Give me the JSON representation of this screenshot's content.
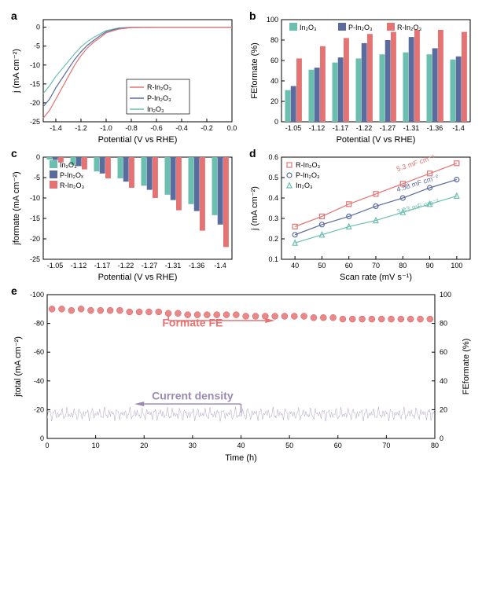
{
  "colors": {
    "in2o3": "#6bbfae",
    "p_in2o3": "#5a6b9e",
    "r_in2o3": "#e57373",
    "formate_marker": "#e57373",
    "current_line": "#9b8bb4",
    "text": "#000000",
    "axis": "#000000",
    "bg": "#ffffff"
  },
  "panel_a": {
    "label": "a",
    "type": "line",
    "xlabel": "Potential (V vs RHE)",
    "ylabel": "j (mA cm⁻²)",
    "xlim": [
      -1.5,
      0.0
    ],
    "ylim": [
      -25,
      2
    ],
    "xticks": [
      -1.4,
      -1.2,
      -1.0,
      -0.8,
      -0.6,
      -0.4,
      -0.2,
      0.0
    ],
    "yticks": [
      -25,
      -20,
      -15,
      -10,
      -5,
      0
    ],
    "legend_items": [
      "R-In₂O₃",
      "P-In₂O₃",
      "In₂O₃"
    ],
    "legend_colors": [
      "#e57373",
      "#5a6b9e",
      "#6bbfae"
    ],
    "series": {
      "r": [
        [
          -1.5,
          -24
        ],
        [
          -1.45,
          -22
        ],
        [
          -1.4,
          -19
        ],
        [
          -1.35,
          -16
        ],
        [
          -1.3,
          -13
        ],
        [
          -1.25,
          -10
        ],
        [
          -1.2,
          -7.5
        ],
        [
          -1.15,
          -5.5
        ],
        [
          -1.1,
          -4
        ],
        [
          -1.05,
          -2.8
        ],
        [
          -1.0,
          -1.5
        ],
        [
          -0.9,
          -0.5
        ],
        [
          -0.8,
          -0.1
        ],
        [
          -0.6,
          0
        ],
        [
          -0.4,
          0
        ],
        [
          -0.2,
          0
        ],
        [
          0,
          0
        ]
      ],
      "p": [
        [
          -1.5,
          -21
        ],
        [
          -1.45,
          -19
        ],
        [
          -1.4,
          -16
        ],
        [
          -1.35,
          -13.5
        ],
        [
          -1.3,
          -11
        ],
        [
          -1.25,
          -8.5
        ],
        [
          -1.2,
          -6.5
        ],
        [
          -1.15,
          -4.8
        ],
        [
          -1.1,
          -3.5
        ],
        [
          -1.05,
          -2.3
        ],
        [
          -1.0,
          -1.2
        ],
        [
          -0.9,
          -0.3
        ],
        [
          -0.8,
          -0.05
        ],
        [
          -0.6,
          0
        ],
        [
          -0.4,
          0
        ],
        [
          -0.2,
          0
        ],
        [
          0,
          0
        ]
      ],
      "i": [
        [
          -1.5,
          -17.5
        ],
        [
          -1.45,
          -15.5
        ],
        [
          -1.4,
          -13
        ],
        [
          -1.35,
          -11
        ],
        [
          -1.3,
          -9
        ],
        [
          -1.25,
          -7
        ],
        [
          -1.2,
          -5.2
        ],
        [
          -1.15,
          -3.8
        ],
        [
          -1.1,
          -2.7
        ],
        [
          -1.05,
          -1.8
        ],
        [
          -1.0,
          -0.9
        ],
        [
          -0.9,
          -0.2
        ],
        [
          -0.8,
          -0.03
        ],
        [
          -0.6,
          0
        ],
        [
          -0.4,
          0
        ],
        [
          -0.2,
          0
        ],
        [
          0,
          0
        ]
      ]
    }
  },
  "panel_b": {
    "label": "b",
    "type": "bar",
    "xlabel": "Potential (V vs RHE)",
    "ylabel": "FE_formate (%)",
    "ylim": [
      0,
      100
    ],
    "yticks": [
      0,
      20,
      40,
      60,
      80,
      100
    ],
    "categories": [
      "-1.05",
      "-1.12",
      "-1.17",
      "-1.22",
      "-1.27",
      "-1.31",
      "-1.36",
      "-1.4"
    ],
    "legend_items": [
      "In₂O₃",
      "P-In₂O₃",
      "R-In₂O₃"
    ],
    "legend_colors": [
      "#6bbfae",
      "#5a6b9e",
      "#e57373"
    ],
    "series": {
      "i": [
        31,
        51,
        58,
        62,
        66,
        68,
        66,
        61
      ],
      "p": [
        35,
        53,
        63,
        77,
        80,
        83,
        72,
        64
      ],
      "r": [
        62,
        74,
        82,
        86,
        88,
        90,
        90,
        88
      ]
    }
  },
  "panel_c": {
    "label": "c",
    "type": "bar",
    "xlabel": "Potential (V vs RHE)",
    "ylabel": "j_formate (mA cm⁻²)",
    "ylim": [
      0,
      -25
    ],
    "yticks": [
      0,
      -5,
      -10,
      -15,
      -20,
      -25
    ],
    "categories": [
      "-1.05",
      "-1.12",
      "-1.17",
      "-1.22",
      "-1.27",
      "-1.31",
      "-1.36",
      "-1.4"
    ],
    "legend_items": [
      "In₂O₃",
      "P-In₂Oₓ",
      "R-In₂O₃"
    ],
    "legend_colors": [
      "#6bbfae",
      "#5a6b9e",
      "#e57373"
    ],
    "series": {
      "i": [
        -0.6,
        -1.9,
        -3.5,
        -5.2,
        -7.0,
        -9.2,
        -11.5,
        -14.2
      ],
      "p": [
        -0.7,
        -2.2,
        -4.0,
        -6.0,
        -8.0,
        -10.5,
        -13.2,
        -16.5
      ],
      "r": [
        -1.3,
        -3.0,
        -5.2,
        -7.5,
        -10.0,
        -13.0,
        -18.0,
        -22.0
      ]
    }
  },
  "panel_d": {
    "label": "d",
    "type": "scatter",
    "xlabel": "Scan rate (mV s⁻¹)",
    "ylabel": "j (mA cm⁻²)",
    "xlim": [
      35,
      105
    ],
    "ylim": [
      0.1,
      0.6
    ],
    "xticks": [
      40,
      50,
      60,
      70,
      80,
      90,
      100
    ],
    "yticks": [
      0.1,
      0.2,
      0.3,
      0.4,
      0.5,
      0.6
    ],
    "legend_items": [
      "R-In₂O₃",
      "P-In₂O₃",
      "In₂O₃"
    ],
    "legend_colors": [
      "#e57373",
      "#5a6b9e",
      "#6bbfae"
    ],
    "legend_markers": [
      "square",
      "circle",
      "triangle"
    ],
    "annotations": {
      "r": "5.3 mF cm⁻²",
      "p": "4.58 mF cm⁻²",
      "i": "3.83 mF cm⁻²"
    },
    "series": {
      "r": [
        [
          40,
          0.26
        ],
        [
          50,
          0.31
        ],
        [
          60,
          0.37
        ],
        [
          70,
          0.42
        ],
        [
          80,
          0.47
        ],
        [
          90,
          0.52
        ],
        [
          100,
          0.57
        ]
      ],
      "p": [
        [
          40,
          0.22
        ],
        [
          50,
          0.27
        ],
        [
          60,
          0.31
        ],
        [
          70,
          0.36
        ],
        [
          80,
          0.4
        ],
        [
          90,
          0.45
        ],
        [
          100,
          0.49
        ]
      ],
      "i": [
        [
          40,
          0.18
        ],
        [
          50,
          0.22
        ],
        [
          60,
          0.26
        ],
        [
          70,
          0.29
        ],
        [
          80,
          0.33
        ],
        [
          90,
          0.37
        ],
        [
          100,
          0.41
        ]
      ]
    }
  },
  "panel_e": {
    "label": "e",
    "type": "dual-axis",
    "xlabel": "Time (h)",
    "ylabel_left": "j_total (mA cm⁻²)",
    "ylabel_right": "FE_formate (%)",
    "xlim": [
      0,
      80
    ],
    "ylim_left": [
      0,
      -100
    ],
    "ylim_right": [
      0,
      100
    ],
    "xticks": [
      0,
      10,
      20,
      30,
      40,
      50,
      60,
      70,
      80
    ],
    "yticks_left": [
      0,
      -20,
      -40,
      -60,
      -80,
      -100
    ],
    "yticks_right": [
      0,
      20,
      40,
      60,
      80,
      100
    ],
    "formate_label": "Formate FE",
    "current_label": "Current density",
    "formate_color": "#e57373",
    "current_color": "#9b8bb4",
    "formate_points_x": [
      1,
      3,
      5,
      7,
      9,
      11,
      13,
      15,
      17,
      19,
      21,
      23,
      25,
      27,
      29,
      31,
      33,
      35,
      37,
      39,
      41,
      43,
      45,
      47,
      49,
      51,
      53,
      55,
      57,
      59,
      61,
      63,
      65,
      67,
      69,
      71,
      73,
      75,
      77,
      79
    ],
    "formate_points_y": [
      90,
      90,
      89,
      90,
      89,
      89,
      89,
      89,
      88,
      88,
      88,
      88,
      87,
      87,
      86,
      86,
      86,
      86,
      86,
      86,
      85,
      85,
      85,
      85,
      85,
      85,
      85,
      84,
      84,
      84,
      83,
      83,
      83,
      83,
      83,
      83,
      83,
      83,
      83,
      83
    ],
    "current_y": -17
  }
}
